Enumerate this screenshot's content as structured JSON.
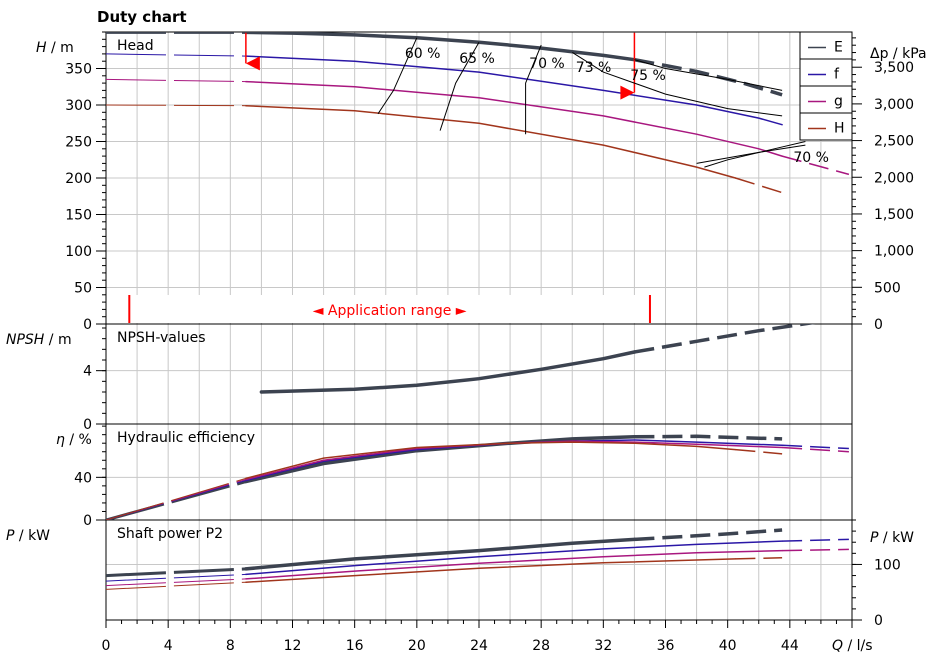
{
  "chart_data": {
    "type": "line",
    "title": "Duty chart",
    "x_axis": {
      "label_var": "Q",
      "label_unit": "/ l/s",
      "range": [
        0,
        48
      ],
      "ticks": [
        "0",
        "4",
        "8",
        "12",
        "16",
        "20",
        "24",
        "28",
        "32",
        "36",
        "40",
        "44"
      ]
    },
    "legend": {
      "placement": "top-right",
      "entries": [
        {
          "name": "E",
          "color": "#3c4350"
        },
        {
          "name": "f",
          "color": "#2a17a6"
        },
        {
          "name": "g",
          "color": "#a8177f"
        },
        {
          "name": "H",
          "color": "#a1351c"
        }
      ]
    },
    "application_range": {
      "label": "Application range",
      "range": [
        1.5,
        35
      ]
    },
    "panels": [
      {
        "id": "head",
        "title": "Head",
        "y_var": "H",
        "y_unit": "/ m",
        "ylim": [
          0,
          400
        ],
        "yticks": [
          "0",
          "50",
          "100",
          "150",
          "200",
          "250",
          "300",
          "350"
        ],
        "yticks_values": [
          0,
          50,
          100,
          150,
          200,
          250,
          300,
          350
        ],
        "right_axis": {
          "label": "Δp / kPa",
          "ticks": [
            "0",
            "500",
            "1,000",
            "1,500",
            "2,000",
            "2,500",
            "3,000",
            "3,500"
          ],
          "ticks_values": [
            0,
            500,
            1000,
            1500,
            2000,
            2500,
            3000,
            3500
          ]
        },
        "series": [
          {
            "name": "E",
            "color": "#3c4350",
            "width": 3.5,
            "dash_before": [
              0,
              399.5,
              9,
              399.5
            ],
            "solid": [
              [
                9,
                399.5
              ],
              [
                12,
                398.5
              ],
              [
                16,
                396
              ],
              [
                20,
                392
              ],
              [
                24,
                386
              ],
              [
                28,
                378
              ],
              [
                32,
                368
              ],
              [
                34,
                362
              ]
            ],
            "dash_after": [
              [
                34,
                362
              ],
              [
                38,
                346
              ],
              [
                41,
                330
              ],
              [
                43.5,
                314
              ]
            ]
          },
          {
            "name": "f",
            "color": "#2a17a6",
            "width": 1.5,
            "dash_before": [
              0,
              370,
              9,
              367
            ],
            "solid": [
              [
                9,
                367
              ],
              [
                16,
                360
              ],
              [
                24,
                345
              ],
              [
                32,
                320
              ],
              [
                38,
                300
              ],
              [
                42,
                282
              ],
              [
                43.5,
                273
              ]
            ],
            "dash_after": []
          },
          {
            "name": "g",
            "color": "#a8177f",
            "width": 1.5,
            "dash_before": [
              0,
              335,
              9,
              332
            ],
            "solid": [
              [
                9,
                332
              ],
              [
                16,
                325
              ],
              [
                24,
                310
              ],
              [
                32,
                285
              ],
              [
                38,
                260
              ],
              [
                42,
                240
              ],
              [
                43.5,
                230
              ]
            ],
            "dash_after": [
              [
                43.5,
                230
              ],
              [
                47.8,
                205
              ]
            ]
          },
          {
            "name": "H",
            "color": "#a1351c",
            "width": 1.5,
            "dash_before": [
              0,
              300,
              9,
              299
            ],
            "solid": [
              [
                9,
                299
              ],
              [
                16,
                292
              ],
              [
                24,
                275
              ],
              [
                32,
                245
              ],
              [
                38,
                215
              ],
              [
                40.5,
                200
              ]
            ],
            "dash_after": [
              [
                40.5,
                200
              ],
              [
                43.5,
                180
              ]
            ]
          }
        ],
        "efficiency_labels": [
          {
            "text": "60 %",
            "q": 20
          },
          {
            "text": "65 %",
            "q": 23.5
          },
          {
            "text": "70 %",
            "q": 28
          },
          {
            "text": "73 %",
            "q": 31
          },
          {
            "text": "75 %",
            "q": 34.5
          },
          {
            "text": "70 %",
            "q": 45
          }
        ],
        "iso_efficiency": [
          [
            [
              17.5,
              288
            ],
            [
              18.5,
              320
            ],
            [
              20,
              392
            ]
          ],
          [
            [
              21.5,
              265
            ],
            [
              22.5,
              330
            ],
            [
              24,
              386
            ]
          ],
          [
            [
              27,
              260
            ],
            [
              27,
              330
            ],
            [
              28,
              382
            ]
          ],
          [
            [
              30,
              372
            ],
            [
              32,
              345
            ],
            [
              36,
              315
            ],
            [
              40,
              295
            ],
            [
              43.5,
              285
            ]
          ],
          [
            [
              34,
              362
            ],
            [
              36,
              350
            ],
            [
              40,
              335
            ],
            [
              43.5,
              320
            ]
          ],
          [
            [
              38.5,
              215
            ],
            [
              40,
              225
            ],
            [
              43,
              240
            ],
            [
              45,
              250
            ]
          ],
          [
            [
              38,
              220
            ],
            [
              42,
              235
            ],
            [
              45,
              245
            ]
          ]
        ],
        "duty_markers": [
          {
            "q": 9,
            "h": 357,
            "dir": "left"
          },
          {
            "q": 34,
            "h": 317,
            "dir": "right"
          }
        ]
      },
      {
        "id": "npsh",
        "title": "NPSH-values",
        "y_var": "NPSH",
        "y_unit": "/ m",
        "ylim": [
          0,
          7.5
        ],
        "yticks": [
          "0",
          "4"
        ],
        "yticks_values": [
          0,
          4
        ],
        "series": [
          {
            "name": "E",
            "color": "#3c4350",
            "width": 3.5,
            "solid": [
              [
                10,
                2.4
              ],
              [
                16,
                2.6
              ],
              [
                20,
                2.9
              ],
              [
                24,
                3.4
              ],
              [
                28,
                4.1
              ],
              [
                32,
                4.9
              ],
              [
                34,
                5.4
              ]
            ],
            "dash_after": [
              [
                34,
                5.4
              ],
              [
                38,
                6.2
              ],
              [
                42,
                7.0
              ],
              [
                47.8,
                8.0
              ]
            ]
          }
        ]
      },
      {
        "id": "eff",
        "title": "Hydraulic efficiency",
        "y_var": "η",
        "y_unit": "/ %",
        "ylim": [
          0,
          90
        ],
        "yticks": [
          "0",
          "40"
        ],
        "yticks_values": [
          0,
          40
        ],
        "series": [
          {
            "name": "E",
            "color": "#3c4350",
            "width": 3.5,
            "dash_before": [
              [
                0,
                0
              ],
              [
                4,
                16
              ],
              [
                9,
                36
              ]
            ],
            "solid": [
              [
                9,
                36
              ],
              [
                14,
                53
              ],
              [
                20,
                65
              ],
              [
                26,
                72
              ],
              [
                30,
                76
              ],
              [
                34,
                78
              ]
            ],
            "dash_after": [
              [
                34,
                78
              ],
              [
                38,
                78.5
              ],
              [
                43.5,
                76
              ]
            ]
          },
          {
            "name": "f",
            "color": "#2a17a6",
            "width": 1.5,
            "dash_before": [
              [
                0,
                0
              ],
              [
                9,
                37
              ]
            ],
            "solid": [
              [
                9,
                37
              ],
              [
                14,
                55
              ],
              [
                20,
                66
              ],
              [
                26,
                72
              ],
              [
                30,
                74
              ],
              [
                34,
                75
              ],
              [
                38,
                73
              ],
              [
                43.5,
                70
              ]
            ],
            "dash_after": [
              [
                43.5,
                70
              ],
              [
                47.8,
                67
              ]
            ]
          },
          {
            "name": "g",
            "color": "#a8177f",
            "width": 1.5,
            "dash_before": [
              [
                0,
                0
              ],
              [
                9,
                38
              ]
            ],
            "solid": [
              [
                9,
                38
              ],
              [
                14,
                56
              ],
              [
                20,
                67
              ],
              [
                26,
                72
              ],
              [
                30,
                74
              ],
              [
                34,
                73
              ],
              [
                38,
                71
              ],
              [
                43.5,
                68
              ]
            ],
            "dash_after": [
              [
                43.5,
                68
              ],
              [
                47.8,
                64
              ]
            ]
          },
          {
            "name": "H",
            "color": "#a1351c",
            "width": 1.5,
            "dash_before": [
              [
                0,
                0
              ],
              [
                9,
                39
              ]
            ],
            "solid": [
              [
                9,
                39
              ],
              [
                14,
                58
              ],
              [
                20,
                68
              ],
              [
                26,
                72
              ],
              [
                30,
                73
              ],
              [
                34,
                72
              ],
              [
                38,
                69
              ],
              [
                40.5,
                66
              ]
            ],
            "dash_after": [
              [
                40.5,
                66
              ],
              [
                43.5,
                62
              ]
            ]
          }
        ]
      },
      {
        "id": "power",
        "title": "Shaft power P2",
        "y_var": "P",
        "y_unit": "/ kW",
        "ylim": [
          0,
          180
        ],
        "yticks": [
          "0",
          "100"
        ],
        "yticks_values": [
          0,
          100
        ],
        "right_ticks_only": true,
        "series": [
          {
            "name": "E",
            "color": "#3c4350",
            "width": 3.5,
            "dash_before": [
              [
                0,
                80
              ],
              [
                9,
                92
              ]
            ],
            "solid": [
              [
                9,
                92
              ],
              [
                16,
                110
              ],
              [
                24,
                125
              ],
              [
                30,
                138
              ],
              [
                34,
                145
              ]
            ],
            "dash_after": [
              [
                34,
                145
              ],
              [
                40,
                155
              ],
              [
                43.5,
                162
              ]
            ]
          },
          {
            "name": "f",
            "color": "#2a17a6",
            "width": 1.5,
            "dash_before": [
              [
                0,
                70
              ],
              [
                9,
                82
              ]
            ],
            "solid": [
              [
                9,
                82
              ],
              [
                16,
                98
              ],
              [
                24,
                114
              ],
              [
                32,
                128
              ],
              [
                38,
                136
              ],
              [
                43.5,
                142
              ]
            ],
            "dash_after": [
              [
                43.5,
                142
              ],
              [
                47.8,
                145
              ]
            ]
          },
          {
            "name": "g",
            "color": "#a8177f",
            "width": 1.5,
            "dash_before": [
              [
                0,
                62
              ],
              [
                9,
                74
              ]
            ],
            "solid": [
              [
                9,
                74
              ],
              [
                16,
                88
              ],
              [
                24,
                102
              ],
              [
                32,
                114
              ],
              [
                38,
                121
              ],
              [
                43.5,
                125
              ]
            ],
            "dash_after": [
              [
                43.5,
                125
              ],
              [
                47.8,
                127
              ]
            ]
          },
          {
            "name": "H",
            "color": "#a1351c",
            "width": 1.5,
            "dash_before": [
              [
                0,
                55
              ],
              [
                9,
                68
              ]
            ],
            "solid": [
              [
                9,
                68
              ],
              [
                16,
                80
              ],
              [
                24,
                93
              ],
              [
                32,
                103
              ],
              [
                38,
                108
              ],
              [
                40.5,
                110
              ]
            ],
            "dash_after": [
              [
                40.5,
                110
              ],
              [
                43.5,
                112
              ]
            ]
          }
        ]
      }
    ]
  }
}
